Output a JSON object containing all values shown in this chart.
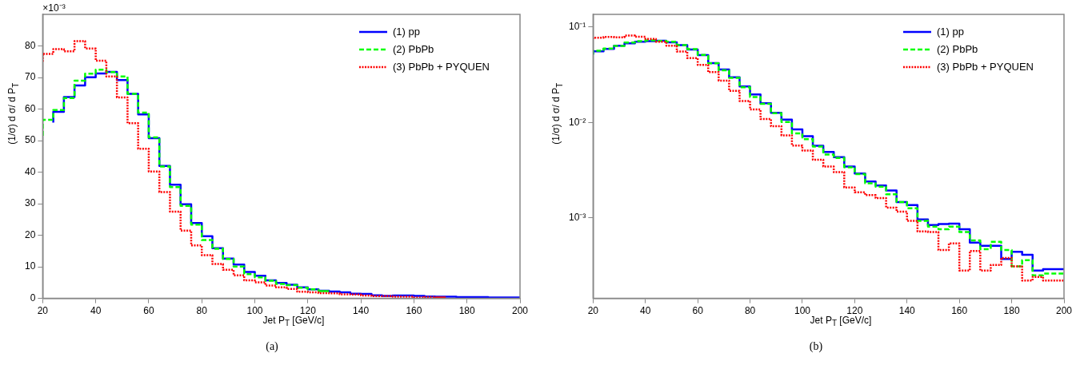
{
  "chart_data": [
    {
      "type": "step",
      "xlabel": "Jet P$_{T}$ [GeV/c]",
      "ylabel": "(1/σ) d σ/ d P$_{T}$",
      "x": [
        20,
        24,
        28,
        32,
        36,
        40,
        44,
        48,
        52,
        56,
        60,
        64,
        68,
        72,
        76,
        80,
        84,
        88,
        92,
        96,
        100,
        104,
        108,
        112,
        116,
        120,
        124,
        128,
        132,
        136,
        140,
        144,
        148,
        152,
        156,
        160,
        164,
        168,
        172,
        176,
        180,
        184,
        188,
        192,
        196,
        200
      ],
      "series": [
        {
          "name": "(1) pp",
          "color": "#0000ff",
          "line_style": "solid",
          "values": [
            null,
            55.7,
            59.1,
            63.8,
            67.5,
            70.1,
            71.3,
            71.8,
            69.2,
            64.8,
            58.3,
            50.8,
            42.0,
            36.0,
            29.8,
            23.9,
            19.7,
            15.9,
            12.6,
            10.7,
            8.4,
            7.2,
            5.7,
            4.9,
            4.3,
            3.5,
            2.9,
            2.4,
            2.2,
            1.9,
            1.5,
            1.4,
            1.0,
            0.8,
            0.9,
            0.9,
            0.8,
            0.6,
            0.5,
            0.5,
            0.4,
            0.4,
            0.4,
            0.3,
            0.3,
            0.3
          ]
        },
        {
          "name": "(2) PbPb",
          "color": "#00ff00",
          "line_style": "dashed",
          "values": [
            51.5,
            56.6,
            59.7,
            63.5,
            69.0,
            71.2,
            72.5,
            71.7,
            70.3,
            64.8,
            58.9,
            51.0,
            41.8,
            35.3,
            29.3,
            23.4,
            18.5,
            15.7,
            12.5,
            10.1,
            7.7,
            6.7,
            5.6,
            4.6,
            4.2,
            3.4,
            2.9,
            2.3,
            null,
            null,
            null,
            null,
            null,
            null,
            null,
            null,
            null,
            null,
            null,
            null,
            null,
            null,
            null,
            null,
            null,
            null
          ]
        },
        {
          "name": "(3) PbPb + PYQUEN",
          "color": "#ff0000",
          "line_style": "dotted",
          "values": [
            75.0,
            77.5,
            79.0,
            78.3,
            81.5,
            79.2,
            75.3,
            70.3,
            63.7,
            55.5,
            47.4,
            40.2,
            33.7,
            27.5,
            21.5,
            16.8,
            13.7,
            10.9,
            9.1,
            7.3,
            5.7,
            5.1,
            4.1,
            3.5,
            3.0,
            2.1,
            1.9,
            1.7,
            1.6,
            1.3,
            1.2,
            0.9,
            0.7,
            0.7,
            0.5,
            0.5,
            0.3,
            0.4,
            0.3,
            null,
            null,
            null,
            null,
            null,
            null,
            null
          ]
        }
      ],
      "xlim": [
        20,
        200
      ],
      "xticks": [
        20,
        40,
        60,
        80,
        100,
        120,
        140,
        160,
        180,
        200
      ],
      "ylim": [
        0,
        90
      ],
      "yticks": [
        0,
        10,
        20,
        30,
        40,
        50,
        60,
        70,
        80
      ],
      "legend": "top right",
      "grid": false,
      "annotations": [
        "×10⁻³",
        "(a)"
      ]
    },
    {
      "type": "step",
      "xlabel": "Jet P$_{T}$ [GeV/c]",
      "ylabel": "(1/σ) d σ/ d P$_{T}$",
      "x": [
        20,
        24,
        28,
        32,
        36,
        40,
        44,
        48,
        52,
        56,
        60,
        64,
        68,
        72,
        76,
        80,
        84,
        88,
        92,
        96,
        100,
        104,
        108,
        112,
        116,
        120,
        124,
        128,
        132,
        136,
        140,
        144,
        148,
        152,
        156,
        160,
        164,
        168,
        172,
        176,
        180,
        184,
        188,
        192,
        196,
        200
      ],
      "series": [
        {
          "name": "(1) pp",
          "color": "#0000ff",
          "line_style": "solid",
          "values": [
            0.0515,
            0.0557,
            0.0591,
            0.0638,
            0.0675,
            0.0701,
            0.0713,
            0.0718,
            0.0692,
            0.0648,
            0.0583,
            0.0508,
            0.042,
            0.036,
            0.0298,
            0.0239,
            0.0197,
            0.0159,
            0.0126,
            0.0107,
            0.00845,
            0.00719,
            0.00569,
            0.0049,
            0.00434,
            0.00345,
            0.00292,
            0.0024,
            0.00218,
            0.00194,
            0.00146,
            0.00136,
            0.00096,
            0.00084,
            0.00086,
            0.00087,
            0.00076,
            0.00055,
            0.00051,
            0.00051,
            0.00037,
            0.00044,
            0.00041,
            0.00028,
            0.00029,
            0.00029
          ]
        },
        {
          "name": "(2) PbPb",
          "color": "#00ff00",
          "line_style": "dashed",
          "values": [
            0.0515,
            0.0566,
            0.0597,
            0.0635,
            0.069,
            0.0712,
            0.0725,
            0.0717,
            0.0703,
            0.0648,
            0.0589,
            0.051,
            0.0418,
            0.0353,
            0.0293,
            0.0234,
            0.0185,
            0.0157,
            0.0125,
            0.0101,
            0.00767,
            0.00667,
            0.0056,
            0.00462,
            0.00425,
            0.00339,
            0.00288,
            0.0023,
            0.00212,
            0.00177,
            0.00146,
            0.00126,
            0.00093,
            0.00081,
            0.00076,
            0.00081,
            0.00071,
            0.00058,
            0.00047,
            0.00056,
            0.00046,
            0.00031,
            0.00036,
            0.00025,
            0.00026,
            0.00026
          ]
        },
        {
          "name": "(3) PbPb + PYQUEN",
          "color": "#ff0000",
          "line_style": "dotted",
          "values": [
            0.075,
            0.0775,
            0.079,
            0.0783,
            0.0815,
            0.0792,
            0.0753,
            0.0703,
            0.0637,
            0.0555,
            0.0474,
            0.0402,
            0.0337,
            0.0275,
            0.0215,
            0.0168,
            0.0137,
            0.0109,
            0.00914,
            0.00734,
            0.00574,
            0.00508,
            0.00406,
            0.00345,
            0.00301,
            0.00208,
            0.00185,
            0.00173,
            0.00161,
            0.00128,
            0.00116,
            0.00093,
            0.00072,
            0.00071,
            0.00046,
            0.00054,
            0.00028,
            0.00045,
            0.00028,
            0.00032,
            0.00038,
            0.00031,
            0.00022,
            0.00024,
            0.00022,
            0.00022
          ]
        }
      ],
      "xlim": [
        20,
        200
      ],
      "xticks": [
        20,
        40,
        60,
        80,
        100,
        120,
        140,
        160,
        180,
        200
      ],
      "ylim": [
        0.000143,
        0.136
      ],
      "yticks": [
        {
          "value": 0.001,
          "label": "10⁻³"
        },
        {
          "value": 0.01,
          "label": "10⁻²"
        },
        {
          "value": 0.1,
          "label": "10⁻¹"
        }
      ],
      "log": "y",
      "legend": "top right",
      "grid": false,
      "annotations": [
        "(b)"
      ]
    }
  ]
}
